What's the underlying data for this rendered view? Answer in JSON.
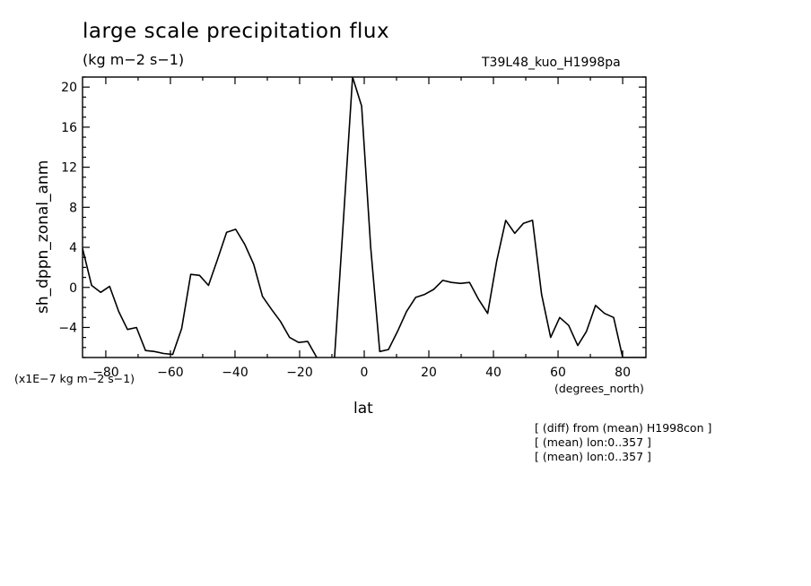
{
  "header": {
    "title": "large scale precipitation flux",
    "units": "(kg m−2 s−1)",
    "run": "T39L48_kuo_H1998pa"
  },
  "axis_notes": {
    "scale": "(x1E−7 kg m−2 s−1)",
    "x_units": "(degrees_north)"
  },
  "notes": [
    "[ (diff) from (mean) H1998con ]",
    "[ (mean) lon:0..357 ]",
    "[ (mean) lon:0..357 ]"
  ],
  "chart_data": {
    "type": "line",
    "title": "large scale precipitation flux",
    "xlabel": "lat",
    "ylabel": "sh_dppn_zonal_anm",
    "xlim": [
      -87.2,
      87.2
    ],
    "ylim": [
      -7,
      21
    ],
    "xticks": [
      -80,
      -60,
      -40,
      -20,
      0,
      20,
      40,
      60,
      80
    ],
    "yticks": [
      -4,
      0,
      4,
      8,
      12,
      16,
      20
    ],
    "xtick_labels": [
      "−80",
      "−60",
      "−40",
      "−20",
      "0",
      "20",
      "40",
      "60",
      "80"
    ],
    "ytick_labels": [
      "−4",
      "0",
      "4",
      "8",
      "12",
      "16",
      "20"
    ],
    "grid": false,
    "series": [
      {
        "x": [
          -87.2,
          -84.4,
          -81.6,
          -78.8,
          -76.0,
          -73.3,
          -70.5,
          -67.7,
          -64.9,
          -62.1,
          -59.3,
          -56.5,
          -53.7,
          -51.0,
          -48.2,
          -45.4,
          -42.6,
          -39.8,
          -37.0,
          -34.2,
          -31.5,
          -28.7,
          -25.9,
          -23.1,
          -20.3,
          -17.5,
          -14.7,
          -11.9,
          -9.2,
          -6.4,
          -3.6,
          -0.8,
          2.0,
          4.8,
          7.5,
          10.3,
          13.1,
          15.9,
          18.7,
          21.5,
          24.3,
          27.0,
          29.8,
          32.6,
          35.4,
          38.2,
          41.0,
          43.8,
          46.6,
          49.3,
          52.1,
          54.9,
          57.7,
          60.5,
          63.3,
          66.1,
          68.8,
          71.6,
          74.4,
          77.2,
          80.0,
          82.8,
          85.6,
          87.2
        ],
        "values": [
          3.9,
          0.2,
          -0.5,
          0.1,
          -2.4,
          -4.2,
          -4.0,
          -6.3,
          -6.4,
          -6.6,
          -6.7,
          -4.1,
          1.3,
          1.2,
          0.2,
          2.8,
          5.5,
          5.8,
          4.3,
          2.3,
          -0.9,
          -2.2,
          -3.4,
          -5.0,
          -5.5,
          -5.4,
          -7.0,
          -8.0,
          -7.0,
          7.0,
          21.0,
          18.1,
          4.0,
          -6.4,
          -6.2,
          -4.4,
          -2.4,
          -1.0,
          -0.7,
          -0.2,
          0.7,
          0.5,
          0.4,
          0.5,
          -1.2,
          -2.6,
          2.6,
          6.7,
          5.4,
          6.4,
          6.7,
          -0.7,
          -5.0,
          -3.0,
          -3.8,
          -5.8,
          -4.4,
          -1.8,
          -2.6,
          -3.0,
          -7.0,
          -7.0,
          -7.0,
          -7.0
        ]
      }
    ]
  }
}
